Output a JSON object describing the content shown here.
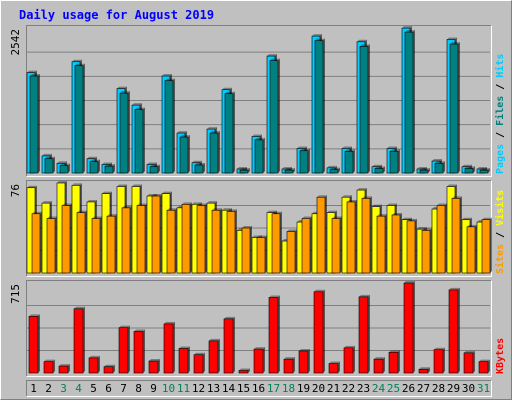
{
  "title": "Daily usage for August 2019",
  "colors": {
    "background": "#c0c0c0",
    "title": "#0000ff",
    "hits": "#00ccff",
    "files": "#008080",
    "pages": "#00ccff",
    "visits": "#ffff00",
    "sites": "#ff9900",
    "kbytes": "#ff0000",
    "weekend_label": "#00805c",
    "weekday_label": "#000000"
  },
  "chart_data": {
    "type": "bar",
    "categories": [
      "1",
      "2",
      "3",
      "4",
      "5",
      "6",
      "7",
      "8",
      "9",
      "10",
      "11",
      "12",
      "13",
      "14",
      "15",
      "16",
      "17",
      "18",
      "19",
      "20",
      "21",
      "22",
      "23",
      "24",
      "25",
      "26",
      "27",
      "28",
      "29",
      "30",
      "31"
    ],
    "weekend_days": [
      "3",
      "4",
      "10",
      "11",
      "17",
      "18",
      "24",
      "25",
      "31"
    ],
    "panels": [
      {
        "id": "hits_files",
        "ymax_label": "2542",
        "ymax": 2542,
        "side_labels": {
          "pages": "Pages",
          "files": "Files",
          "hits": "Hits"
        },
        "series": [
          {
            "name": "Hits",
            "values": [
              1760,
              300,
              170,
              1950,
              250,
              150,
              1480,
              1190,
              150,
              1700,
              700,
              180,
              770,
              1460,
              70,
              640,
              2050,
              70,
              430,
              2400,
              90,
              430,
              2300,
              110,
              430,
              2540,
              70,
              210,
              2340,
              110,
              70
            ]
          },
          {
            "name": "Files",
            "values": [
              1700,
              250,
              130,
              1880,
              200,
              120,
              1400,
              1110,
              110,
              1620,
              630,
              140,
              700,
              1390,
              50,
              580,
              1970,
              50,
              390,
              2320,
              60,
              380,
              2220,
              80,
              380,
              2470,
              50,
              170,
              2260,
              80,
              50
            ]
          },
          {
            "name": "Pages",
            "values": [
              0,
              0,
              0,
              0,
              0,
              0,
              0,
              0,
              0,
              0,
              0,
              0,
              0,
              0,
              0,
              0,
              0,
              0,
              0,
              0,
              0,
              0,
              0,
              0,
              0,
              0,
              0,
              0,
              0,
              0,
              0
            ]
          }
        ]
      },
      {
        "id": "visits_sites",
        "ymax_label": "76",
        "ymax": 76,
        "side_labels": {
          "sites": "Sites",
          "visits": "Visits"
        },
        "series": [
          {
            "name": "Visits",
            "values": [
              72,
              59,
              76,
              74,
              60,
              67,
              73,
              73,
              65,
              67,
              55,
              58,
              59,
              53,
              36,
              30,
              51,
              27,
              43,
              50,
              51,
              64,
              70,
              56,
              57,
              45,
              37,
              54,
              73,
              45,
              43
            ]
          },
          {
            "name": "Sites",
            "values": [
              50,
              46,
              57,
              51,
              46,
              48,
              55,
              57,
              65,
              53,
              58,
              57,
              53,
              52,
              38,
              30,
              50,
              35,
              46,
              64,
              46,
              60,
              63,
              48,
              49,
              44,
              36,
              57,
              63,
              39,
              45
            ]
          }
        ]
      },
      {
        "id": "kbytes",
        "ymax_label": "715",
        "ymax": 715,
        "side_labels": {
          "kbytes": "KBytes"
        },
        "series": [
          {
            "name": "KBytes",
            "values": [
              450,
              90,
              55,
              510,
              120,
              50,
              360,
              330,
              95,
              390,
              195,
              145,
              255,
              430,
              20,
              190,
              600,
              110,
              175,
              645,
              75,
              200,
              605,
              110,
              165,
              715,
              30,
              185,
              660,
              160,
              90
            ]
          }
        ]
      }
    ]
  }
}
